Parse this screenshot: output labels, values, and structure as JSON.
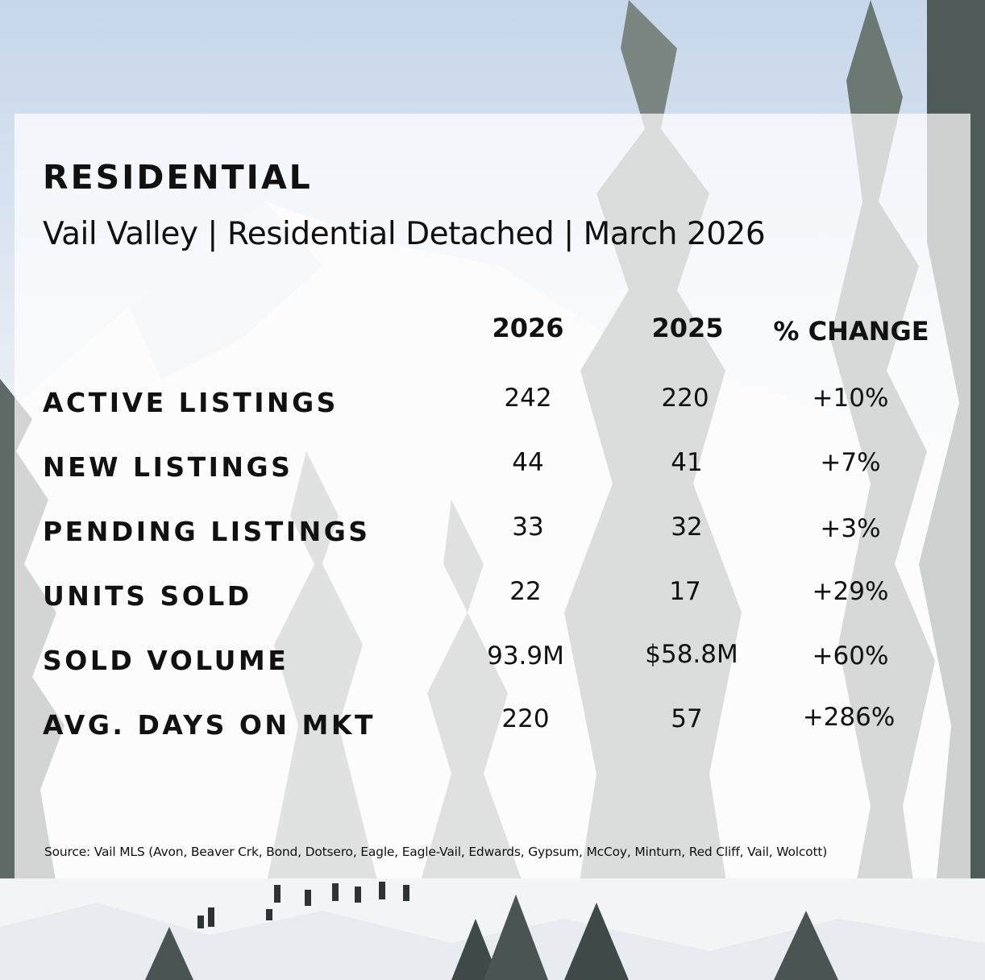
{
  "title": "RESIDENTIAL",
  "subtitle": "Vail Valley | Residential Detached | March 2026",
  "columns": [
    "2026",
    "2025",
    "% CHANGE"
  ],
  "rows": [
    {
      "label": "ACTIVE LISTINGS",
      "y2026": "242",
      "y2025": "220",
      "change": "+10%"
    },
    {
      "label": "NEW LISTINGS",
      "y2026": "44",
      "y2025": "41",
      "change": "+7%"
    },
    {
      "label": "PENDING LISTINGS",
      "y2026": "33",
      "y2025": "32",
      "change": "+3%"
    },
    {
      "label": "UNITS SOLD",
      "y2026": "22",
      "y2025": "17",
      "change": "+29%"
    },
    {
      "label": "SOLD VOLUME",
      "y2026": "93.9M",
      "y2025": "$58.8M",
      "change": "+60%"
    },
    {
      "label": "AVG. DAYS ON MKT",
      "y2026": "220",
      "y2025": "57",
      "change": "+286%"
    }
  ],
  "source": "Source: Vail MLS (Avon, Beaver Crk, Bond, Dotsero, Eagle, Eagle-Vail, Edwards, Gypsum, McCoy, Minturn, Red Cliff, Vail, Wolcott)"
}
